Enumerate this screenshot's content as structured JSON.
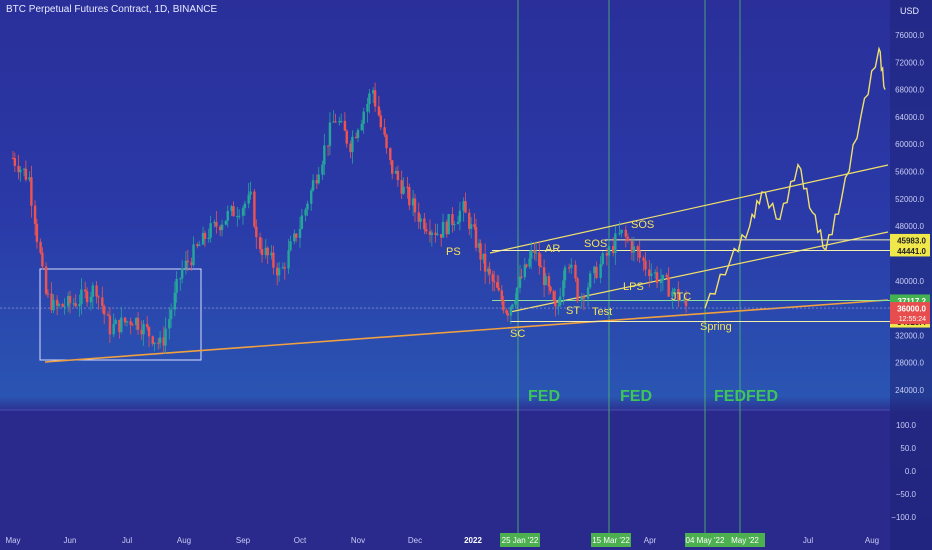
{
  "header": {
    "title": "BTC Perpetual Futures Contract, 1D, BINANCE"
  },
  "axis": {
    "currency": "USD",
    "price_ticks": [
      "76000.0",
      "72000.0",
      "68000.0",
      "64000.0",
      "60000.0",
      "56000.0",
      "52000.0",
      "48000.0",
      "44000.0",
      "40000.0",
      "36000.0",
      "32000.0",
      "28000.0",
      "24000.0"
    ],
    "osc_ticks": [
      "100.0",
      "50.0",
      "0.0",
      "−50.0",
      "−100.0"
    ],
    "x_ticks": [
      "May",
      "Jun",
      "Jul",
      "Aug",
      "Sep",
      "Oct",
      "Nov",
      "Dec",
      "2022",
      "Apr",
      "Jul",
      "Aug"
    ],
    "date_flags": [
      "25 Jan '22",
      "15 Mar '22",
      "04 May '22",
      "May '22"
    ]
  },
  "price_labels": {
    "l1": "45983.0",
    "l2": "44441.0",
    "l3": "37117.2",
    "current": "36000.0",
    "countdown": "12:55:24",
    "l4": "34025.4"
  },
  "annotations": [
    "PS",
    "AR",
    "SOS",
    "SOS",
    "SC",
    "ST",
    "Test",
    "LPS",
    "JTC",
    "Spring"
  ],
  "fed_labels": [
    "FED",
    "FED",
    "FEDFED"
  ],
  "colors": {
    "up": "#26a69a",
    "down": "#ef5350",
    "projection": "#f0e06a",
    "trendline": "#f0a040",
    "fed_line": "#4cc36a",
    "annotation": "#f5e35a"
  },
  "chart_data": {
    "type": "candlestick",
    "title": "BTC Perpetual Futures Contract, 1D, BINANCE",
    "ylim": [
      22000,
      80000
    ],
    "key_levels": [
      45983.0,
      44441.0,
      37117.2,
      36000.0,
      34025.4
    ],
    "fed_dates": [
      "25 Jan '22",
      "15 Mar '22",
      "04 May '22",
      "May '22"
    ],
    "price_path": [
      [
        "2021-05-01",
        58000
      ],
      [
        "2021-05-10",
        55000
      ],
      [
        "2021-05-19",
        38000
      ],
      [
        "2021-05-24",
        36000
      ],
      [
        "2021-06-05",
        37000
      ],
      [
        "2021-06-15",
        39000
      ],
      [
        "2021-06-22",
        33000
      ],
      [
        "2021-07-05",
        34500
      ],
      [
        "2021-07-20",
        30500
      ],
      [
        "2021-07-31",
        41500
      ],
      [
        "2021-08-14",
        47000
      ],
      [
        "2021-08-24",
        49500
      ],
      [
        "2021-09-06",
        52000
      ],
      [
        "2021-09-08",
        46000
      ],
      [
        "2021-09-21",
        41000
      ],
      [
        "2021-10-01",
        48000
      ],
      [
        "2021-10-20",
        64000
      ],
      [
        "2021-10-28",
        60000
      ],
      [
        "2021-11-09",
        68000
      ],
      [
        "2021-11-18",
        57000
      ],
      [
        "2021-12-04",
        49000
      ],
      [
        "2021-12-14",
        47000
      ],
      [
        "2021-12-27",
        50500
      ],
      [
        "2022-01-10",
        41500
      ],
      [
        "2022-01-24",
        35500
      ],
      [
        "2022-02-10",
        44500
      ],
      [
        "2022-02-24",
        35000
      ],
      [
        "2022-03-02",
        44000
      ],
      [
        "2022-03-08",
        37500
      ],
      [
        "2022-03-28",
        47000
      ],
      [
        "2022-04-10",
        42000
      ],
      [
        "2022-04-25",
        38000
      ],
      [
        "2022-05-01",
        36000
      ]
    ],
    "projection_path": [
      [
        "2022-05-04",
        36000
      ],
      [
        "2022-05-25",
        43000
      ],
      [
        "2022-06-10",
        48000
      ],
      [
        "2022-06-20",
        53000
      ],
      [
        "2022-07-05",
        49000
      ],
      [
        "2022-07-20",
        57000
      ],
      [
        "2022-08-01",
        50000
      ],
      [
        "2022-08-12",
        44500
      ],
      [
        "2022-08-25",
        52000
      ],
      [
        "2022-09-10",
        64000
      ],
      [
        "2022-09-25",
        74000
      ],
      [
        "2022-09-30",
        68000
      ]
    ]
  }
}
